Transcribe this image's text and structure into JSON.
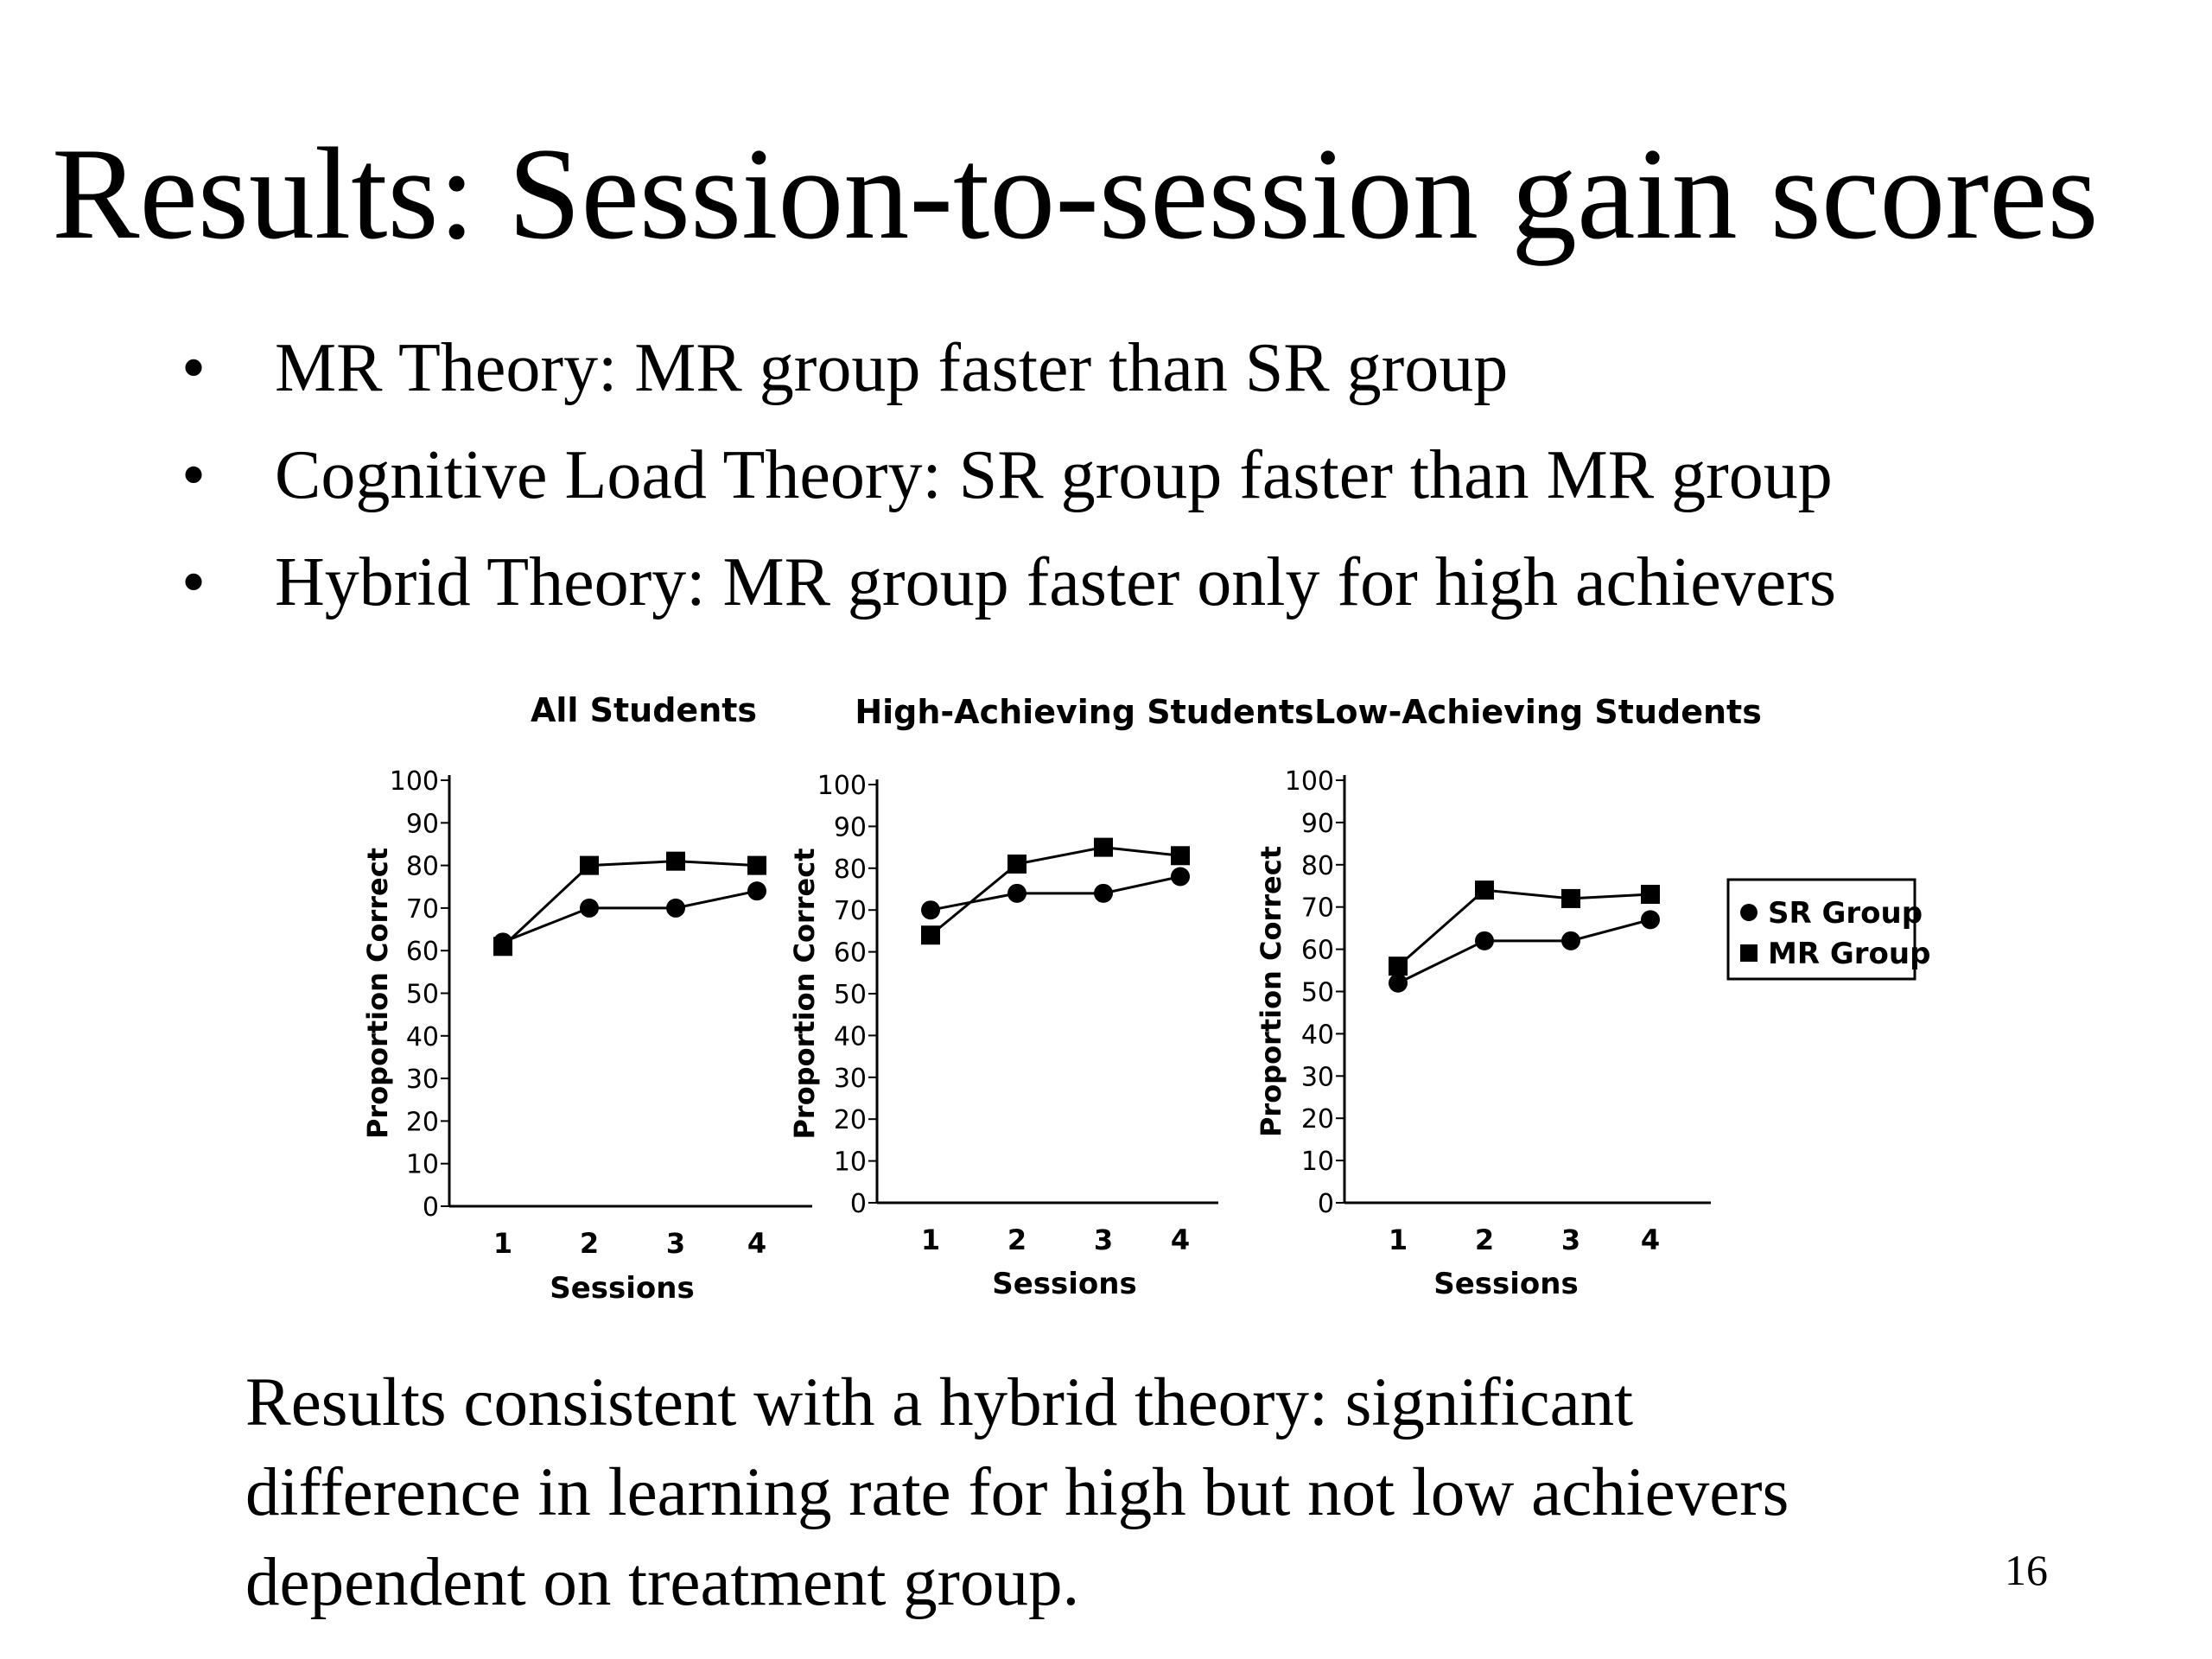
{
  "title": "Results: Session-to-session gain scores",
  "bullets": [
    "MR Theory: MR group faster than SR group",
    "Cognitive Load Theory: SR group faster than MR group",
    "Hybrid Theory: MR group faster only for high achievers"
  ],
  "bullet_symbol": "•",
  "conclusion": [
    "Results consistent with a hybrid theory: significant",
    "difference in learning rate for high but not low achievers",
    "dependent on treatment group."
  ],
  "page_number": "16",
  "legend": {
    "entries": [
      "SR Group",
      "MR Group"
    ],
    "placement": "right"
  },
  "chart_data": [
    {
      "type": "line",
      "title": "All Students",
      "xlabel": "Sessions",
      "ylabel": "Proportion Correct",
      "x": [
        1,
        2,
        3,
        4
      ],
      "x_ticks": [
        "1",
        "2",
        "3",
        "4"
      ],
      "y_ticks": [
        "0",
        "10",
        "20",
        "30",
        "40",
        "50",
        "60",
        "70",
        "80",
        "90",
        "100"
      ],
      "ylim": [
        0,
        100
      ],
      "grid": false,
      "series": [
        {
          "name": "SR Group",
          "marker": "circle",
          "values": [
            62,
            70,
            70,
            74
          ]
        },
        {
          "name": "MR Group",
          "marker": "square",
          "values": [
            61,
            80,
            81,
            80
          ]
        }
      ]
    },
    {
      "type": "line",
      "title": "High-Achieving Students",
      "xlabel": "Sessions",
      "ylabel": "Proportion Correct",
      "x": [
        1,
        2,
        3,
        4
      ],
      "x_ticks": [
        "1",
        "2",
        "3",
        "4"
      ],
      "y_ticks": [
        "0",
        "10",
        "20",
        "30",
        "40",
        "50",
        "60",
        "70",
        "80",
        "90",
        "100"
      ],
      "ylim": [
        0,
        100
      ],
      "grid": false,
      "series": [
        {
          "name": "SR Group",
          "marker": "circle",
          "values": [
            70,
            74,
            74,
            78
          ]
        },
        {
          "name": "MR Group",
          "marker": "square",
          "values": [
            64,
            81,
            85,
            83
          ]
        }
      ]
    },
    {
      "type": "line",
      "title": "Low-Achieving Students",
      "xlabel": "Sessions",
      "ylabel": "Proportion Correct",
      "x": [
        1,
        2,
        3,
        4
      ],
      "x_ticks": [
        "1",
        "2",
        "3",
        "4"
      ],
      "y_ticks": [
        "0",
        "10",
        "20",
        "30",
        "40",
        "50",
        "60",
        "70",
        "80",
        "90",
        "100"
      ],
      "ylim": [
        0,
        100
      ],
      "grid": false,
      "series": [
        {
          "name": "SR Group",
          "marker": "circle",
          "values": [
            52,
            62,
            62,
            67
          ]
        },
        {
          "name": "MR Group",
          "marker": "square",
          "values": [
            56,
            74,
            72,
            73
          ]
        }
      ]
    }
  ]
}
